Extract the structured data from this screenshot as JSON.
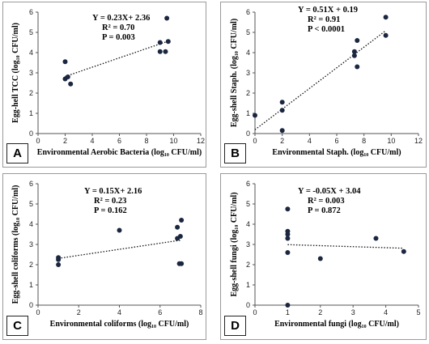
{
  "chart_data": [
    {
      "id": "A",
      "type": "scatter",
      "panel_label": "A",
      "xlabel": "Environmental Aerobic Bacteria (log₁₀ CFU/ml)",
      "ylabel": "Egg-hell TCC (log₁₀ CFU/ml)",
      "xlim": [
        0,
        12
      ],
      "ylim": [
        0,
        6
      ],
      "xticks": [
        0,
        2,
        4,
        6,
        8,
        10,
        12
      ],
      "yticks": [
        0,
        1,
        2,
        3,
        4,
        5,
        6
      ],
      "points": [
        [
          2.0,
          3.55
        ],
        [
          2.0,
          2.7
        ],
        [
          2.2,
          2.8
        ],
        [
          2.4,
          2.45
        ],
        [
          9.0,
          4.5
        ],
        [
          9.0,
          4.05
        ],
        [
          9.4,
          4.05
        ],
        [
          9.5,
          5.7
        ],
        [
          9.6,
          4.55
        ]
      ],
      "trendline": {
        "slope": 0.23,
        "intercept": 2.36,
        "x_range": [
          2.0,
          9.6
        ]
      },
      "equation": "Y = 0.23X+ 2.36",
      "r2": "R² = 0.70",
      "p": "P = 0.003"
    },
    {
      "id": "B",
      "type": "scatter",
      "panel_label": "B",
      "xlabel": "Environmental Staph. (log₁₀ CFU/ml)",
      "ylabel": "Egg-shell Staph. (log₁₀ CFU/ml)",
      "xlim": [
        0,
        12
      ],
      "ylim": [
        0,
        6
      ],
      "xticks": [
        0,
        2,
        4,
        6,
        8,
        10,
        12
      ],
      "yticks": [
        0,
        1,
        2,
        3,
        4,
        5,
        6
      ],
      "points": [
        [
          0.0,
          0.9
        ],
        [
          2.0,
          1.55
        ],
        [
          2.0,
          1.15
        ],
        [
          2.0,
          0.15
        ],
        [
          7.3,
          4.05
        ],
        [
          7.3,
          3.85
        ],
        [
          7.5,
          4.6
        ],
        [
          7.5,
          3.3
        ],
        [
          9.6,
          5.75
        ],
        [
          9.6,
          4.85
        ]
      ],
      "trendline": {
        "slope": 0.51,
        "intercept": 0.19,
        "x_range": [
          0.0,
          9.6
        ]
      },
      "equation": "Y = 0.51X + 0.19",
      "r2": "R² = 0.91",
      "p": "P < 0.0001"
    },
    {
      "id": "C",
      "type": "scatter",
      "panel_label": "C",
      "xlabel": "Environmental coliforms (log₁₀ CFU/ml)",
      "ylabel": "Egg-shell coliforms (log₁₀ CFU/ml)",
      "xlim": [
        0,
        8
      ],
      "ylim": [
        0,
        6
      ],
      "xticks": [
        0,
        2,
        4,
        6,
        8
      ],
      "yticks": [
        0,
        1,
        2,
        3,
        4,
        5,
        6
      ],
      "points": [
        [
          1.0,
          2.35
        ],
        [
          1.0,
          2.25
        ],
        [
          1.0,
          2.0
        ],
        [
          4.0,
          3.7
        ],
        [
          6.85,
          3.85
        ],
        [
          6.85,
          3.3
        ],
        [
          7.0,
          3.4
        ],
        [
          7.05,
          4.2
        ],
        [
          6.95,
          2.05
        ],
        [
          7.05,
          2.05
        ]
      ],
      "trendline": {
        "slope": 0.15,
        "intercept": 2.16,
        "x_range": [
          1.0,
          7.05
        ]
      },
      "equation": "Y = 0.15X+ 2.16",
      "r2": "R² = 0.23",
      "p": "P = 0.162"
    },
    {
      "id": "D",
      "type": "scatter",
      "panel_label": "D",
      "xlabel": "Environmental fungi (log₁₀ CFU/ml)",
      "ylabel": "Egg-shell fungi (log₁₀ CFU/ml)",
      "xlim": [
        0,
        5
      ],
      "ylim": [
        0,
        6
      ],
      "xticks": [
        0,
        1,
        2,
        3,
        4,
        5
      ],
      "yticks": [
        0,
        1,
        2,
        3,
        4,
        5,
        6
      ],
      "points": [
        [
          1.0,
          4.75
        ],
        [
          1.0,
          3.65
        ],
        [
          1.0,
          3.5
        ],
        [
          1.0,
          3.3
        ],
        [
          1.0,
          2.6
        ],
        [
          1.0,
          0.0
        ],
        [
          2.0,
          2.3
        ],
        [
          3.7,
          3.3
        ],
        [
          4.55,
          2.65
        ]
      ],
      "trendline": {
        "slope": -0.05,
        "intercept": 3.04,
        "x_range": [
          1.0,
          4.55
        ]
      },
      "equation": "Y = -0.05X + 3.04",
      "r2": "R² = 0.003",
      "p": "P = 0.872"
    }
  ]
}
